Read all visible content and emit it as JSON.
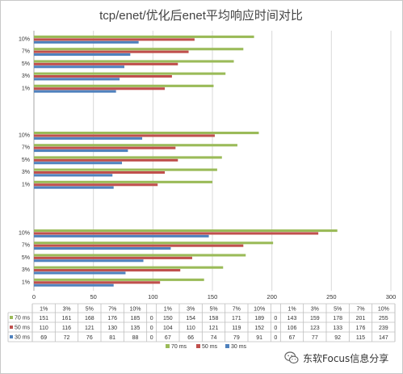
{
  "chart_data": {
    "type": "bar",
    "orientation": "horizontal",
    "title": "tcp/enet/优化后enet平均响应时间对比",
    "xlim": [
      0,
      300
    ],
    "x_ticks": [
      "0",
      "50",
      "100",
      "150",
      "200",
      "250",
      "300"
    ],
    "categories": [
      "1%",
      "3%",
      "5%",
      "7%",
      "10%"
    ],
    "grid": true,
    "legend_position": "bottom",
    "groups": [
      {
        "series": [
          {
            "name": "70 ms",
            "color": "#9bbb59",
            "values": [
              151,
              161,
              168,
              176,
              185
            ]
          },
          {
            "name": "50 ms",
            "color": "#c0504d",
            "values": [
              110,
              116,
              121,
              130,
              135
            ]
          },
          {
            "name": "30 ms",
            "color": "#4f81bd",
            "values": [
              69,
              72,
              76,
              81,
              88
            ]
          }
        ]
      },
      {
        "series": [
          {
            "name": "70 ms",
            "color": "#9bbb59",
            "values": [
              150,
              154,
              158,
              171,
              189
            ]
          },
          {
            "name": "50 ms",
            "color": "#c0504d",
            "values": [
              104,
              110,
              121,
              119,
              152
            ]
          },
          {
            "name": "30 ms",
            "color": "#4f81bd",
            "values": [
              67,
              66,
              74,
              79,
              91
            ]
          }
        ]
      },
      {
        "series": [
          {
            "name": "70 ms",
            "color": "#9bbb59",
            "values": [
              143,
              159,
              178,
              201,
              255
            ]
          },
          {
            "name": "50 ms",
            "color": "#c0504d",
            "values": [
              106,
              123,
              133,
              176,
              239
            ]
          },
          {
            "name": "30 ms",
            "color": "#4f81bd",
            "values": [
              67,
              77,
              92,
              115,
              147
            ]
          }
        ]
      }
    ]
  },
  "watermark": {
    "text": "东软Focus信息分享",
    "icon": "wechat-icon"
  }
}
